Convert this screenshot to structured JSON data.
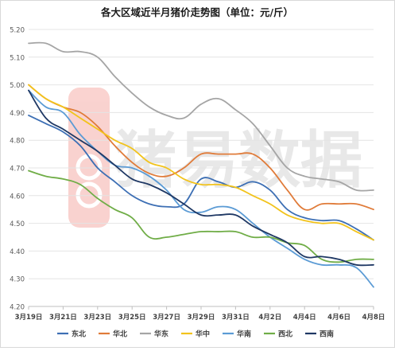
{
  "chart_data": {
    "type": "line",
    "title": "各大区域近半月猪价走势图（单位：元/斤）",
    "xlabel": "",
    "ylabel": "",
    "ylim": [
      4.2,
      5.2
    ],
    "yticks": [
      "4.20",
      "4.30",
      "4.40",
      "4.50",
      "4.60",
      "4.70",
      "4.80",
      "4.90",
      "5.00",
      "5.10",
      "5.20"
    ],
    "xticks": [
      "3月19日",
      "3月21日",
      "3月23日",
      "3月25日",
      "3月27日",
      "3月29日",
      "3月31日",
      "4月2日",
      "4月4日",
      "4月6日",
      "4月8日"
    ],
    "x_day_start": 0,
    "x_day_end": 20,
    "grid": "horizontal",
    "legend_position": "bottom",
    "watermark": "猪易数据",
    "series": [
      {
        "name": "东北",
        "color": "#3d6fb4",
        "values": [
          4.89,
          4.86,
          4.83,
          4.78,
          4.7,
          4.65,
          4.6,
          4.57,
          4.56,
          4.57,
          4.66,
          4.65,
          4.63,
          4.65,
          4.62,
          4.55,
          4.52,
          4.51,
          4.51,
          4.48,
          4.44
        ]
      },
      {
        "name": "华北",
        "color": "#e07b39",
        "values": [
          5.0,
          4.95,
          4.92,
          4.9,
          4.85,
          4.78,
          4.72,
          4.68,
          4.67,
          4.7,
          4.75,
          4.75,
          4.75,
          4.75,
          4.7,
          4.62,
          4.55,
          4.57,
          4.57,
          4.57,
          4.55
        ]
      },
      {
        "name": "华东",
        "color": "#a5a5a5",
        "values": [
          5.15,
          5.15,
          5.12,
          5.12,
          5.1,
          5.03,
          4.97,
          4.92,
          4.89,
          4.88,
          4.93,
          4.95,
          4.91,
          4.86,
          4.78,
          4.7,
          4.67,
          4.66,
          4.65,
          4.62,
          4.62
        ]
      },
      {
        "name": "华中",
        "color": "#f2c31b",
        "values": [
          5.0,
          4.95,
          4.92,
          4.88,
          4.84,
          4.8,
          4.77,
          4.72,
          4.7,
          4.66,
          4.64,
          4.64,
          4.63,
          4.6,
          4.57,
          4.53,
          4.51,
          4.5,
          4.5,
          4.47,
          4.44
        ]
      },
      {
        "name": "华南",
        "color": "#5b9bd5",
        "values": [
          4.98,
          4.92,
          4.9,
          4.82,
          4.76,
          4.71,
          4.7,
          4.67,
          4.62,
          4.55,
          4.54,
          4.56,
          4.55,
          4.5,
          4.45,
          4.41,
          4.37,
          4.35,
          4.35,
          4.34,
          4.27
        ]
      },
      {
        "name": "西北",
        "color": "#70ad47",
        "values": [
          4.69,
          4.67,
          4.66,
          4.64,
          4.59,
          4.55,
          4.52,
          4.45,
          4.45,
          4.46,
          4.47,
          4.47,
          4.47,
          4.45,
          4.45,
          4.43,
          4.42,
          4.37,
          4.36,
          4.37,
          4.37
        ]
      },
      {
        "name": "西南",
        "color": "#1f3864",
        "values": [
          4.98,
          4.88,
          4.84,
          4.8,
          4.76,
          4.71,
          4.66,
          4.64,
          4.61,
          4.57,
          4.53,
          4.53,
          4.53,
          4.49,
          4.46,
          4.43,
          4.38,
          4.38,
          4.37,
          4.35,
          4.35
        ]
      }
    ]
  }
}
